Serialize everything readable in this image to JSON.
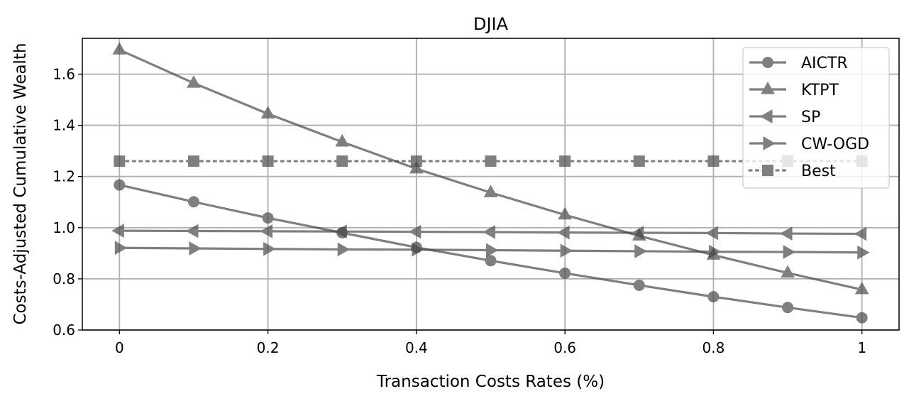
{
  "chart_data": {
    "type": "line",
    "title": "DJIA",
    "xlabel": "Transaction Costs Rates (%)",
    "ylabel": "Costs-Adjusted Cumulative Wealth",
    "xlim": [
      -0.05,
      1.05
    ],
    "ylim": [
      0.6,
      1.74
    ],
    "x": [
      0,
      0.1,
      0.2,
      0.3,
      0.4,
      0.5,
      0.6,
      0.7,
      0.8,
      0.9,
      1.0
    ],
    "xticks": [
      0,
      0.2,
      0.4,
      0.6,
      0.8,
      1.0
    ],
    "xtick_labels": [
      "0",
      "0.2",
      "0.4",
      "0.6",
      "0.8",
      "1"
    ],
    "yticks": [
      0.6,
      0.8,
      1.0,
      1.2,
      1.4,
      1.6
    ],
    "ytick_labels": [
      "0.6",
      "0.8",
      "1.0",
      "1.2",
      "1.4",
      "1.6"
    ],
    "grid": true,
    "legend_position": "top-right",
    "series": [
      {
        "name": "AICTR",
        "marker": "circle",
        "linestyle": "solid",
        "color": "#444444",
        "values": [
          1.167,
          1.101,
          1.038,
          0.98,
          0.923,
          0.871,
          0.822,
          0.775,
          0.73,
          0.688,
          0.648
        ]
      },
      {
        "name": "KTPT",
        "marker": "triangle-up",
        "linestyle": "solid",
        "color": "#444444",
        "values": [
          1.695,
          1.565,
          1.445,
          1.335,
          1.23,
          1.137,
          1.05,
          0.968,
          0.893,
          0.823,
          0.758
        ]
      },
      {
        "name": "SP",
        "marker": "triangle-left",
        "linestyle": "solid",
        "color": "#444444",
        "values": [
          0.988,
          0.987,
          0.986,
          0.985,
          0.984,
          0.983,
          0.981,
          0.98,
          0.979,
          0.977,
          0.976
        ]
      },
      {
        "name": "CW-OGD",
        "marker": "triangle-right",
        "linestyle": "solid",
        "color": "#444444",
        "values": [
          0.921,
          0.919,
          0.917,
          0.915,
          0.914,
          0.912,
          0.91,
          0.908,
          0.906,
          0.905,
          0.903
        ]
      },
      {
        "name": "Best",
        "marker": "square",
        "linestyle": "dotted",
        "color": "#444444",
        "values": [
          1.26,
          1.26,
          1.26,
          1.26,
          1.26,
          1.26,
          1.26,
          1.26,
          1.26,
          1.26,
          1.26
        ]
      }
    ]
  }
}
